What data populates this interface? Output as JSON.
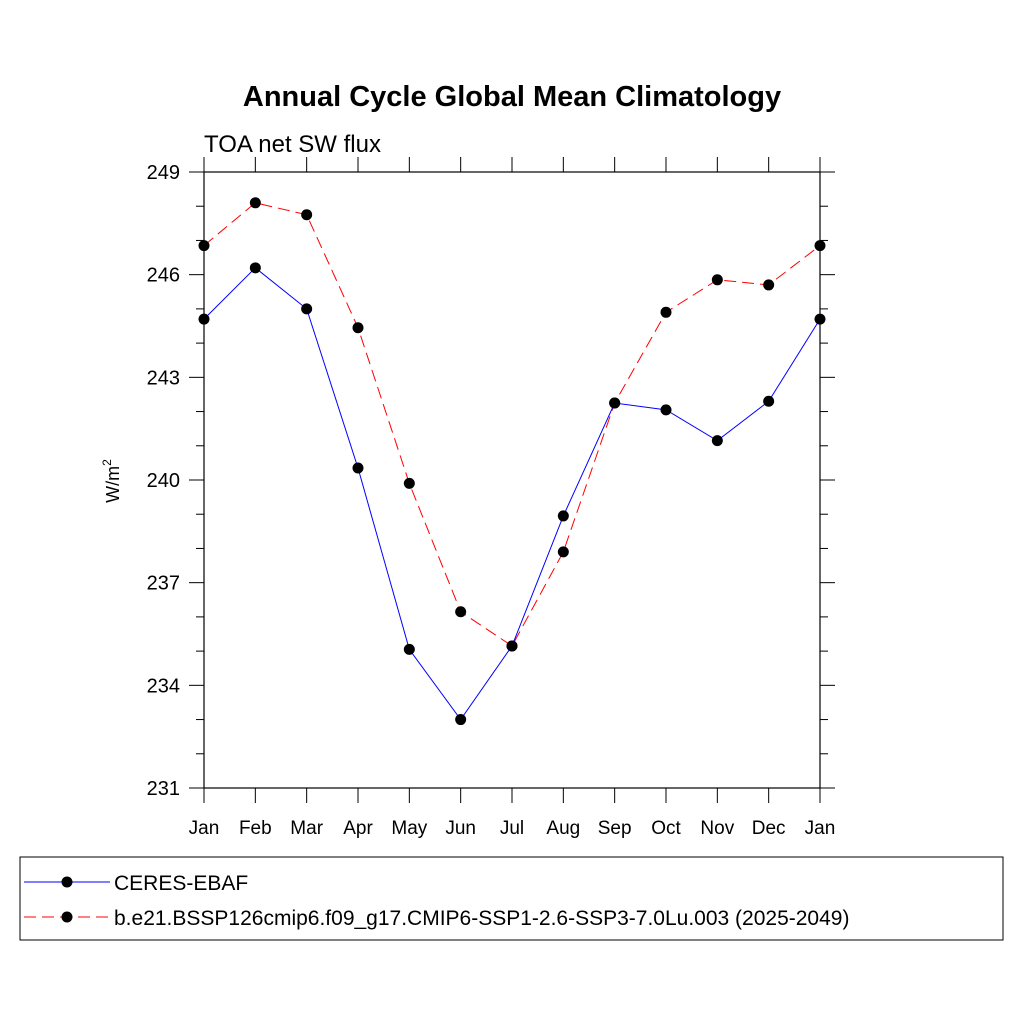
{
  "chart_data": {
    "type": "line",
    "title": "Annual Cycle Global Mean Climatology",
    "subtitle": "TOA net SW flux",
    "xlabel": "",
    "ylabel": "W/m",
    "ylabel_superscript": "2",
    "categories": [
      "Jan",
      "Feb",
      "Mar",
      "Apr",
      "May",
      "Jun",
      "Jul",
      "Aug",
      "Sep",
      "Oct",
      "Nov",
      "Dec",
      "Jan"
    ],
    "ylim": [
      231,
      249
    ],
    "yticks": [
      "231",
      "234",
      "237",
      "240",
      "243",
      "246",
      "249"
    ],
    "grid": false,
    "legend_position": "bottom",
    "series": [
      {
        "name": "CERES-EBAF",
        "color": "#0000ff",
        "dash": "solid",
        "marker": "circle",
        "values": [
          244.7,
          246.2,
          245.0,
          240.35,
          235.05,
          233.0,
          235.15,
          238.95,
          242.25,
          242.05,
          241.15,
          242.3,
          244.7
        ]
      },
      {
        "name": "b.e21.BSSP126cmip6.f09_g17.CMIP6-SSP1-2.6-SSP3-7.0Lu.003 (2025-2049)",
        "color": "#ff0000",
        "dash": "dashed",
        "marker": "circle",
        "values": [
          246.85,
          248.1,
          247.75,
          244.45,
          239.9,
          236.15,
          235.15,
          237.9,
          242.25,
          244.9,
          245.85,
          245.7,
          246.85
        ]
      }
    ]
  }
}
